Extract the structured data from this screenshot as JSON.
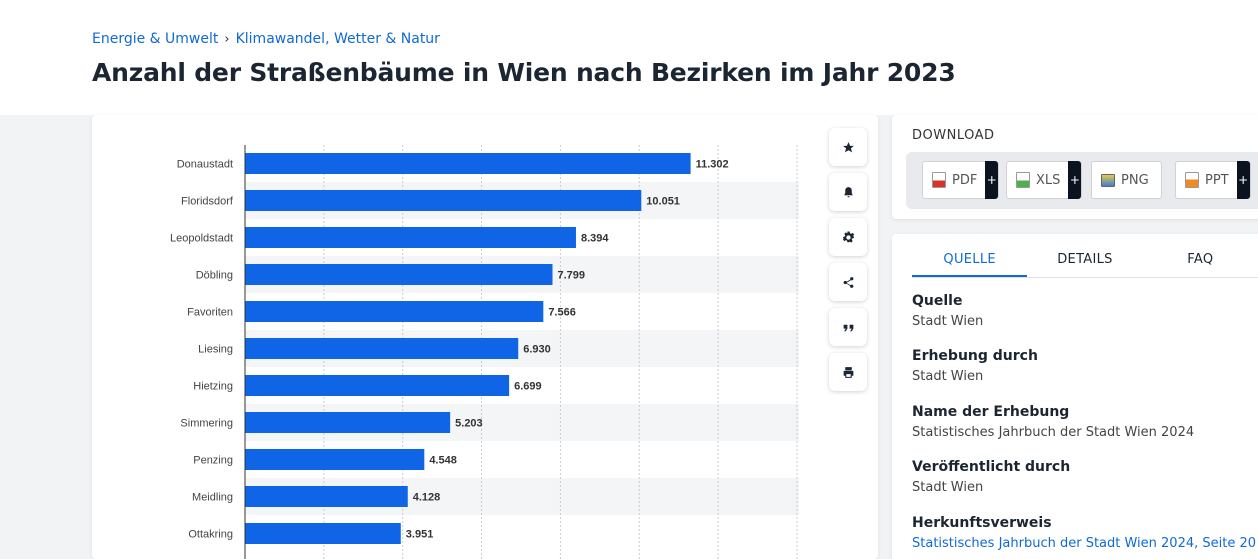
{
  "breadcrumb": {
    "items": [
      "Energie & Umwelt",
      "Klimawandel, Wetter & Natur"
    ],
    "separator": "›"
  },
  "page_title": "Anzahl der Straßenbäume in Wien nach Bezirken im Jahr 2023",
  "toolbar": {
    "icons": [
      "star-icon",
      "bell-icon",
      "gear-icon",
      "share-icon",
      "quote-icon",
      "print-icon"
    ]
  },
  "download": {
    "title": "DOWNLOAD",
    "buttons": [
      {
        "label": "PDF",
        "icon": "pdf-file-icon",
        "color": "#d9322b"
      },
      {
        "label": "XLS",
        "icon": "xls-file-icon",
        "color": "#4caf50"
      },
      {
        "label": "PNG",
        "icon": "png-file-icon",
        "color": "#3f7fcf"
      },
      {
        "label": "PPT",
        "icon": "ppt-file-icon",
        "color": "#f08a24"
      }
    ],
    "plus": "+"
  },
  "info": {
    "tabs": [
      {
        "label": "QUELLE",
        "active": true
      },
      {
        "label": "DETAILS",
        "active": false
      },
      {
        "label": "FAQ",
        "active": false
      }
    ],
    "sections": [
      {
        "heading": "Quelle",
        "value": "Stadt Wien",
        "link": false
      },
      {
        "heading": "Erhebung durch",
        "value": "Stadt Wien",
        "link": false
      },
      {
        "heading": "Name der Erhebung",
        "value": "Statistisches Jahrbuch der Stadt Wien 2024",
        "link": false
      },
      {
        "heading": "Veröffentlicht durch",
        "value": "Stadt Wien",
        "link": false
      },
      {
        "heading": "Herkunftsverweis",
        "value": "Statistisches Jahrbuch der Stadt Wien 2024, Seite 20",
        "link": true
      }
    ]
  },
  "chart_data": {
    "type": "bar",
    "orientation": "horizontal",
    "title": "Anzahl der Straßenbäume in Wien nach Bezirken im Jahr 2023",
    "categories": [
      "Donaustadt",
      "Floridsdorf",
      "Leopoldstadt",
      "Döbling",
      "Favoriten",
      "Liesing",
      "Hietzing",
      "Simmering",
      "Penzing",
      "Meidling",
      "Ottakring"
    ],
    "values": [
      11302,
      10051,
      8394,
      7799,
      7566,
      6930,
      6699,
      5203,
      4548,
      4128,
      3951
    ],
    "value_labels": [
      "11.302",
      "10.051",
      "8.394",
      "7.799",
      "7.566",
      "6.930",
      "6.699",
      "5.203",
      "4.548",
      "4.128",
      "3.951"
    ],
    "xlim": [
      0,
      14000
    ],
    "grid_step": 2000,
    "grid": true,
    "bar_color": "#0f65e6",
    "xlabel": "",
    "ylabel": ""
  }
}
